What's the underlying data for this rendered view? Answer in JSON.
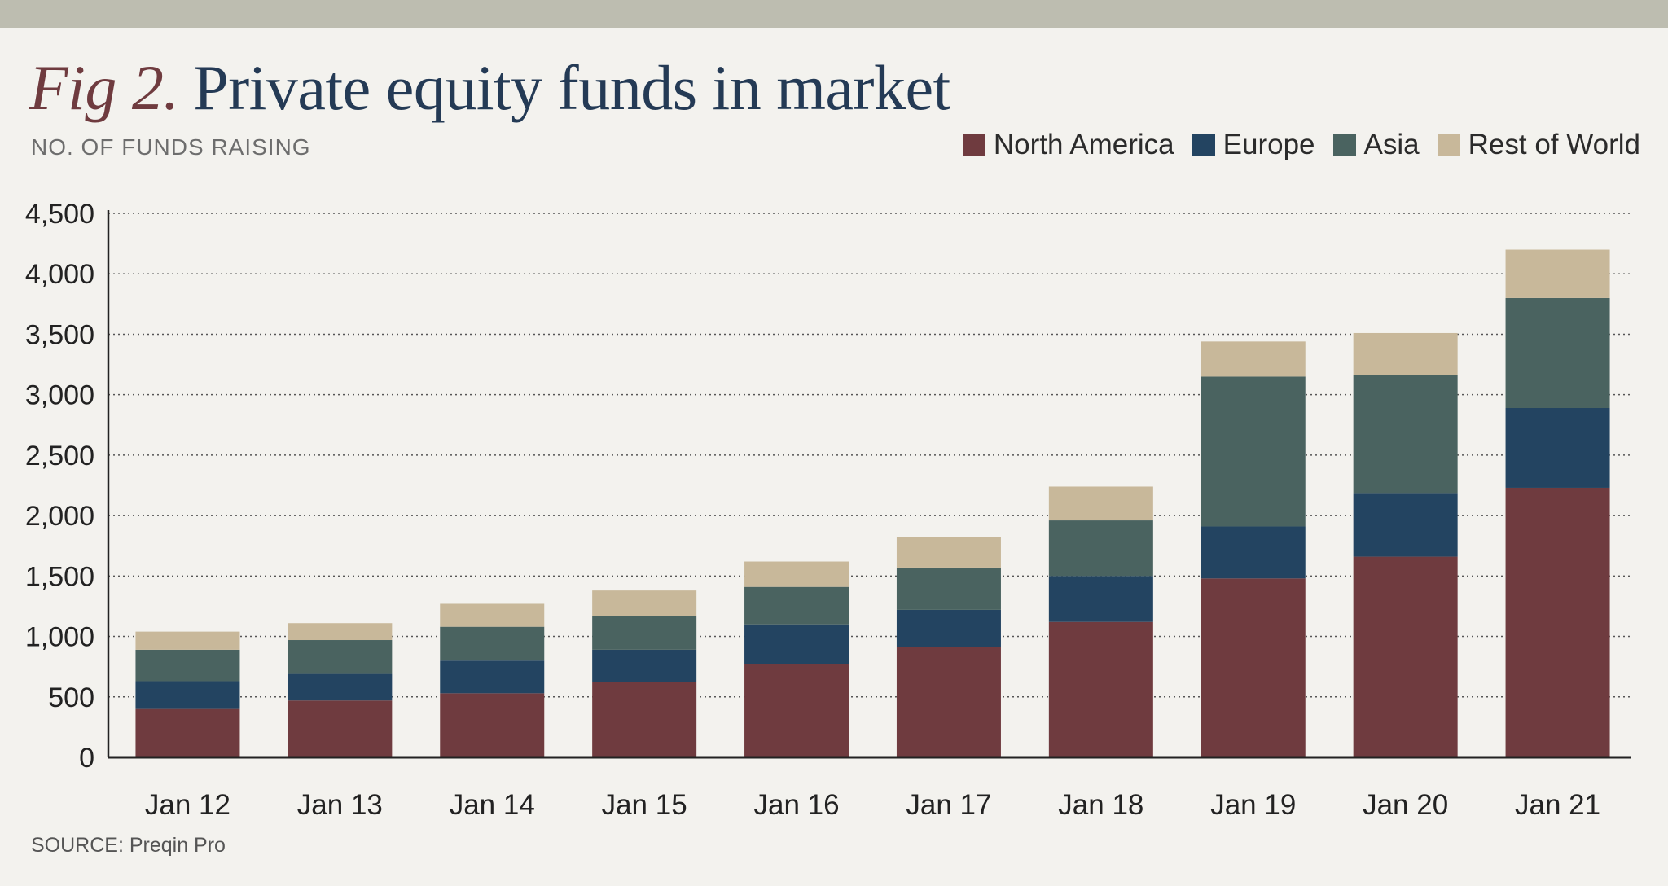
{
  "header": {
    "fig_label": "Fig 2.",
    "title": "Private equity funds in market",
    "subtitle": "NO. OF FUNDS RAISING"
  },
  "source": "SOURCE: Preqin Pro",
  "colors": {
    "North America": "#6f3b3f",
    "Europe": "#234461",
    "Asia": "#4a6360",
    "Rest of World": "#c8b89a",
    "axis": "#222222",
    "grid": "#555555"
  },
  "chart_data": {
    "type": "bar",
    "stacked": true,
    "categories": [
      "Jan 12",
      "Jan 13",
      "Jan 14",
      "Jan 15",
      "Jan 16",
      "Jan 17",
      "Jan 18",
      "Jan 19",
      "Jan 20",
      "Jan 21"
    ],
    "series": [
      {
        "name": "North America",
        "values": [
          400,
          470,
          530,
          620,
          770,
          910,
          1120,
          1480,
          1660,
          2230
        ]
      },
      {
        "name": "Europe",
        "values": [
          230,
          220,
          270,
          270,
          330,
          310,
          380,
          430,
          520,
          660
        ]
      },
      {
        "name": "Asia",
        "values": [
          260,
          280,
          280,
          280,
          310,
          350,
          460,
          1240,
          980,
          910
        ]
      },
      {
        "name": "Rest of World",
        "values": [
          150,
          140,
          190,
          210,
          210,
          250,
          280,
          290,
          350,
          400
        ]
      }
    ],
    "yticks": [
      "0",
      "500",
      "1,000",
      "1,500",
      "2,000",
      "2,500",
      "3,000",
      "3,500",
      "4,000",
      "4,500"
    ],
    "ylim": [
      0,
      4500
    ],
    "ytick_step": 500,
    "grid": true,
    "legend_position": "top-right"
  }
}
